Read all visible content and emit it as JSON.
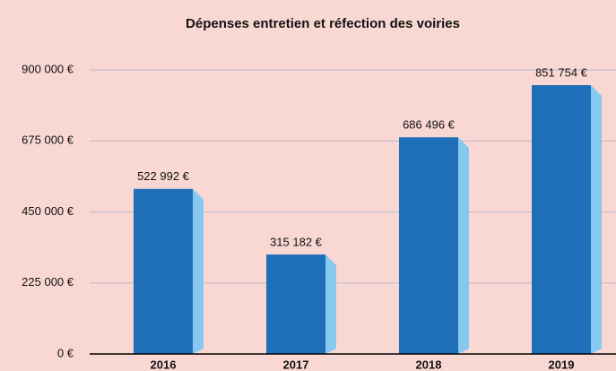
{
  "chart_data": {
    "type": "bar",
    "title": "Dépenses entretien et réfection des voiries",
    "categories": [
      "2016",
      "2017",
      "2018",
      "2019"
    ],
    "values": [
      522992,
      315182,
      686496,
      851754
    ],
    "value_labels": [
      "522 992 €",
      "315 182 €",
      "686 496 €",
      "851 754 €"
    ],
    "color": "#1f6fb8",
    "ylim": [
      0,
      900000
    ],
    "yticks": [
      {
        "value": 0,
        "label": "0 €"
      },
      {
        "value": 225000,
        "label": "225 000 €"
      },
      {
        "value": 450000,
        "label": "450 000 €"
      },
      {
        "value": 675000,
        "label": "675 000 €"
      },
      {
        "value": 900000,
        "label": "900 000 €"
      }
    ],
    "grid": true
  }
}
